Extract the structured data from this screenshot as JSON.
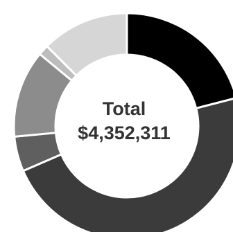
{
  "chart_data": {
    "type": "pie",
    "variant": "donut",
    "center_label": {
      "line1": "Total",
      "line2": "$4,352,311"
    },
    "segments": [
      {
        "value": 21.0,
        "color": "#000000"
      },
      {
        "value": 47.5,
        "color": "#3b3b3b"
      },
      {
        "value": 5.0,
        "color": "#5f5f5f"
      },
      {
        "value": 12.5,
        "color": "#8c8c8c"
      },
      {
        "value": 1.5,
        "color": "#bdbdbd"
      },
      {
        "value": 12.5,
        "color": "#d6d6d6"
      }
    ],
    "legend": "none",
    "separator_color": "#ffffff"
  }
}
